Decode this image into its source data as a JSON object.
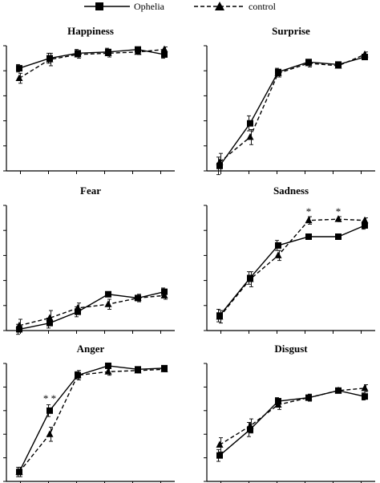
{
  "legend": {
    "items": [
      {
        "label": "Ophelia",
        "style": "solid",
        "marker": "square"
      },
      {
        "label": "control",
        "style": "dashed",
        "marker": "triangle"
      }
    ]
  },
  "chart_data": [
    {
      "type": "line",
      "title": "Happiness",
      "x": [
        1,
        2,
        3,
        4,
        5,
        6
      ],
      "ylim": [
        0,
        5
      ],
      "series": [
        {
          "name": "Ophelia",
          "values": [
            4.1,
            4.5,
            4.7,
            4.75,
            4.85,
            4.65
          ],
          "err": [
            0.15,
            0.2,
            0.15,
            0.15,
            0.1,
            0.15
          ]
        },
        {
          "name": "control",
          "values": [
            3.7,
            4.45,
            4.65,
            4.7,
            4.75,
            4.85
          ],
          "err": [
            0.2,
            0.25,
            0.15,
            0.15,
            0.1,
            0.1
          ]
        }
      ],
      "annotations": []
    },
    {
      "type": "line",
      "title": "Surprise",
      "x": [
        1,
        2,
        3,
        4,
        5,
        6
      ],
      "ylim": [
        0,
        5
      ],
      "series": [
        {
          "name": "Ophelia",
          "values": [
            0.2,
            1.9,
            3.95,
            4.35,
            4.25,
            4.55
          ],
          "err": [
            0.35,
            0.3,
            0.15,
            0.1,
            0.1,
            0.1
          ]
        },
        {
          "name": "control",
          "values": [
            0.35,
            1.35,
            3.9,
            4.3,
            4.2,
            4.65
          ],
          "err": [
            0.35,
            0.3,
            0.15,
            0.15,
            0.1,
            0.1
          ]
        }
      ],
      "annotations": []
    },
    {
      "type": "line",
      "title": "Fear",
      "x": [
        1,
        2,
        3,
        4,
        5,
        6
      ],
      "ylim": [
        0,
        5
      ],
      "series": [
        {
          "name": "Ophelia",
          "values": [
            0.05,
            0.3,
            0.75,
            1.45,
            1.3,
            1.55
          ],
          "err": [
            0.2,
            0.2,
            0.2,
            0.1,
            0.1,
            0.15
          ]
        },
        {
          "name": "control",
          "values": [
            0.2,
            0.5,
            0.9,
            1.05,
            1.3,
            1.4
          ],
          "err": [
            0.25,
            0.3,
            0.2,
            0.2,
            0.15,
            0.15
          ]
        }
      ],
      "annotations": []
    },
    {
      "type": "line",
      "title": "Sadness",
      "x": [
        1,
        2,
        3,
        4,
        5,
        6
      ],
      "ylim": [
        0,
        5
      ],
      "series": [
        {
          "name": "Ophelia",
          "values": [
            0.6,
            2.1,
            3.4,
            3.75,
            3.75,
            4.2
          ],
          "err": [
            0.25,
            0.25,
            0.2,
            0.1,
            0.1,
            0.15
          ]
        },
        {
          "name": "control",
          "values": [
            0.55,
            2.05,
            3.0,
            4.4,
            4.45,
            4.4
          ],
          "err": [
            0.25,
            0.3,
            0.2,
            0.15,
            0.1,
            0.1
          ]
        }
      ],
      "annotations": [
        {
          "text": "*",
          "x": 4,
          "y": 4.75
        },
        {
          "text": "*",
          "x": 5,
          "y": 4.75
        }
      ]
    },
    {
      "type": "line",
      "title": "Anger",
      "x": [
        1,
        2,
        3,
        4,
        5,
        6
      ],
      "ylim": [
        0,
        5
      ],
      "series": [
        {
          "name": "Ophelia",
          "values": [
            0.4,
            3.0,
            4.5,
            4.9,
            4.75,
            4.8
          ],
          "err": [
            0.2,
            0.25,
            0.15,
            0.1,
            0.1,
            0.1
          ]
        },
        {
          "name": "control",
          "values": [
            0.4,
            2.0,
            4.5,
            4.65,
            4.7,
            4.75
          ],
          "err": [
            0.2,
            0.3,
            0.2,
            0.15,
            0.1,
            0.1
          ]
        }
      ],
      "annotations": [
        {
          "text": "* *",
          "x": 2,
          "y": 3.5
        }
      ]
    },
    {
      "type": "line",
      "title": "Disgust",
      "x": [
        1,
        2,
        3,
        4,
        5,
        6
      ],
      "ylim": [
        0,
        5
      ],
      "series": [
        {
          "name": "Ophelia",
          "values": [
            1.1,
            2.2,
            3.4,
            3.55,
            3.85,
            3.6
          ],
          "err": [
            0.25,
            0.3,
            0.15,
            0.1,
            0.1,
            0.15
          ]
        },
        {
          "name": "control",
          "values": [
            1.55,
            2.35,
            3.25,
            3.55,
            3.85,
            3.95
          ],
          "err": [
            0.3,
            0.3,
            0.2,
            0.15,
            0.1,
            0.15
          ]
        }
      ],
      "annotations": []
    }
  ]
}
